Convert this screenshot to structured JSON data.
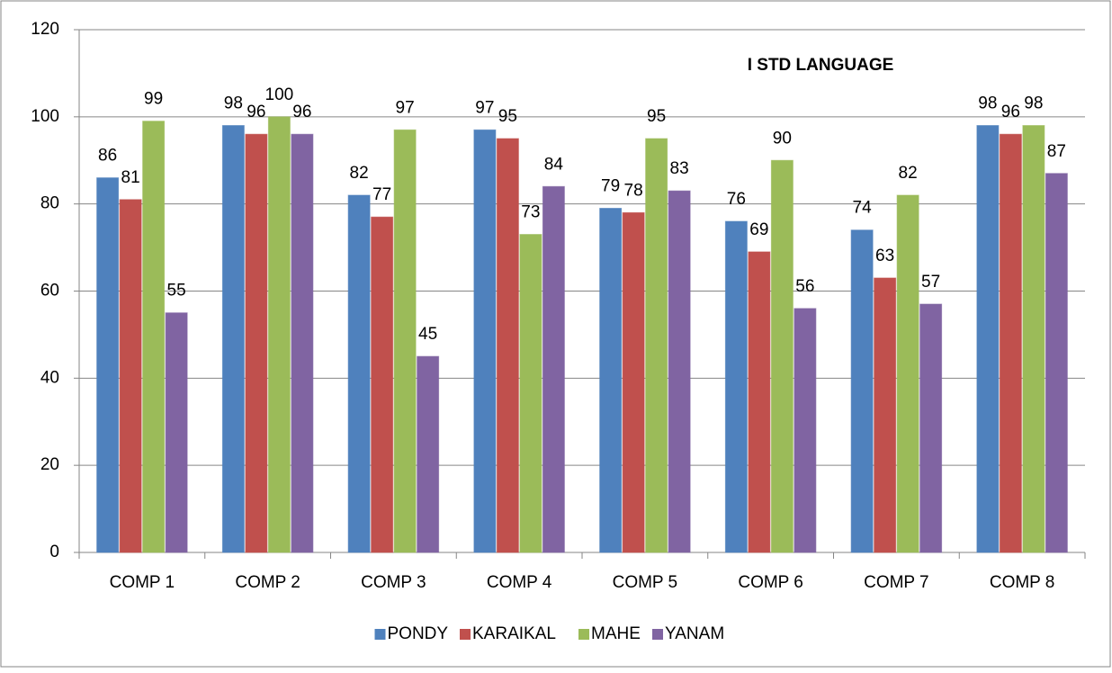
{
  "chart_data": {
    "type": "bar",
    "title": "I STD LANGUAGE",
    "categories": [
      "COMP 1",
      "COMP 2",
      "COMP 3",
      "COMP 4",
      "COMP 5",
      "COMP 6",
      "COMP 7",
      "COMP 8"
    ],
    "series": [
      {
        "name": "PONDY",
        "color": "#4f81bd",
        "values": [
          86,
          98,
          82,
          97,
          79,
          76,
          74,
          98
        ]
      },
      {
        "name": "KARAIKAL",
        "color": "#c0504d",
        "values": [
          81,
          96,
          77,
          95,
          78,
          69,
          63,
          96
        ]
      },
      {
        "name": "MAHE",
        "color": "#9bbb59",
        "values": [
          99,
          100,
          97,
          73,
          95,
          90,
          82,
          98
        ]
      },
      {
        "name": "YANAM",
        "color": "#8064a2",
        "values": [
          55,
          96,
          45,
          84,
          83,
          56,
          57,
          87
        ]
      }
    ],
    "ylim": [
      0,
      120
    ],
    "yticks": [
      0,
      20,
      40,
      60,
      80,
      100,
      120
    ],
    "grid": true,
    "legend": "bottom"
  }
}
